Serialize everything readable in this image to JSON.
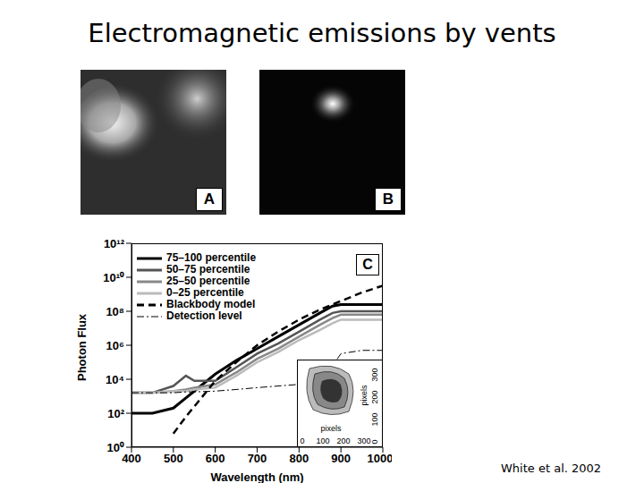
{
  "slide": {
    "title": "Electromagnetic emissions by vents",
    "citation": "White et al. 2002",
    "images": [
      {
        "label": "A"
      },
      {
        "label": "B"
      }
    ]
  },
  "chart_data": {
    "type": "line",
    "panel_label": "C",
    "xlabel": "Wavelength (nm)",
    "ylabel": "Photon Flux",
    "log": "y",
    "legend": "upper left",
    "x": [
      400,
      450,
      500,
      530,
      550,
      600,
      650,
      700,
      750,
      800,
      850,
      880,
      900,
      950,
      1000
    ],
    "xlim": [
      400,
      1000
    ],
    "xticks": [
      400,
      500,
      600,
      700,
      800,
      900,
      1000
    ],
    "ylim": [
      1,
      1000000000000
    ],
    "yticks": [
      {
        "value": 1,
        "label": "10⁰"
      },
      {
        "value": 100,
        "label": "10²"
      },
      {
        "value": 10000,
        "label": "10⁴"
      },
      {
        "value": 1000000,
        "label": "10⁶"
      },
      {
        "value": 100000000,
        "label": "10⁸"
      },
      {
        "value": 10000000000,
        "label": "10¹⁰"
      },
      {
        "value": 1000000000000,
        "label": "10¹²"
      }
    ],
    "series": [
      {
        "name": "75–100 percentile",
        "color": "#000000",
        "line_style": "solid",
        "values": [
          100,
          100,
          200,
          800,
          2000,
          20000,
          126000,
          630000,
          3200000,
          16000000,
          80000000,
          200000000,
          250000000,
          250000000,
          250000000
        ]
      },
      {
        "name": "50–75 percentile",
        "color": "#555555",
        "line_style": "solid",
        "values": [
          1600,
          1600,
          4000,
          16000,
          8000,
          8000,
          50000,
          320000,
          1260000,
          6300000,
          32000000,
          80000000,
          100000000,
          100000000,
          100000000
        ]
      },
      {
        "name": "25–50 percentile",
        "color": "#888888",
        "line_style": "solid",
        "values": [
          1600,
          1600,
          2000,
          2500,
          3200,
          5000,
          25000,
          160000,
          630000,
          3200000,
          16000000,
          40000000,
          63000000,
          63000000,
          63000000
        ]
      },
      {
        "name": "0–25 percentile",
        "color": "#bbbbbb",
        "line_style": "solid",
        "values": [
          1600,
          1600,
          2000,
          2000,
          2500,
          3200,
          16000,
          100000,
          400000,
          2000000,
          8000000,
          20000000,
          32000000,
          32000000,
          32000000
        ]
      },
      {
        "name": "Blackbody model",
        "color": "#000000",
        "line_style": "dashed",
        "values": [
          null,
          null,
          6.3,
          63,
          250,
          8000,
          100000,
          1000000,
          6300000,
          32000000,
          126000000,
          250000000,
          400000000,
          1260000000,
          3200000000
        ]
      },
      {
        "name": "Detection level",
        "color": "#000000",
        "line_style": "dashdot",
        "values": [
          1600,
          1600,
          1600,
          1800,
          1800,
          2000,
          2500,
          3200,
          4000,
          5000,
          16000,
          63000,
          320000,
          500000,
          500000
        ]
      }
    ],
    "inset": {
      "xlabel": "pixels",
      "ylabel": "pixels",
      "xticks": [
        0,
        100,
        200,
        300
      ],
      "yticks": [
        0,
        100,
        200,
        300
      ]
    }
  }
}
